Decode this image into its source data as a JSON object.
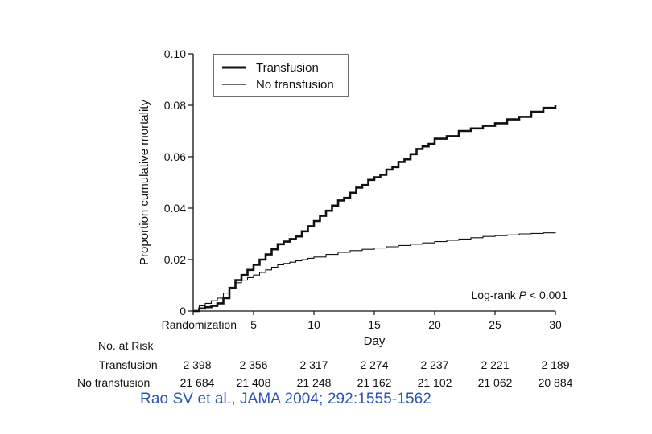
{
  "chart_data": {
    "type": "line",
    "ylabel": "Proportion cumulative mortality",
    "xlabel": "Day",
    "ylim": [
      0,
      0.1
    ],
    "xlim": [
      0,
      30
    ],
    "y_ticks": [
      "0",
      "0.02",
      "0.04",
      "0.06",
      "0.08",
      "0.10"
    ],
    "y_tick_values": [
      0,
      0.02,
      0.04,
      0.06,
      0.08,
      0.1
    ],
    "x_ticks": [
      "Randomization",
      "5",
      "10",
      "15",
      "20",
      "25",
      "30"
    ],
    "x_tick_values": [
      0,
      5,
      10,
      15,
      20,
      25,
      30
    ],
    "legend_position": "top-left",
    "annotation_prefix": "Log-rank",
    "annotation_p": "P",
    "annotation_rest": " < 0.001",
    "series": [
      {
        "name": "Transfusion",
        "style": "thick",
        "x": [
          0,
          0.5,
          1,
          1.5,
          2,
          2.5,
          3,
          3.5,
          4,
          4.5,
          5,
          5.5,
          6,
          6.5,
          7,
          7.5,
          8,
          8.5,
          9,
          9.5,
          10,
          10.5,
          11,
          11.5,
          12,
          12.5,
          13,
          13.5,
          14,
          14.5,
          15,
          15.5,
          16,
          16.5,
          17,
          17.5,
          18,
          18.5,
          19,
          19.5,
          20,
          21,
          22,
          23,
          24,
          25,
          26,
          27,
          28,
          29,
          30
        ],
        "values": [
          0,
          0.001,
          0.0015,
          0.002,
          0.003,
          0.005,
          0.009,
          0.012,
          0.014,
          0.016,
          0.018,
          0.02,
          0.022,
          0.024,
          0.026,
          0.027,
          0.028,
          0.029,
          0.031,
          0.033,
          0.035,
          0.037,
          0.039,
          0.041,
          0.043,
          0.044,
          0.046,
          0.048,
          0.049,
          0.051,
          0.052,
          0.053,
          0.055,
          0.056,
          0.058,
          0.059,
          0.061,
          0.063,
          0.064,
          0.065,
          0.067,
          0.068,
          0.07,
          0.071,
          0.072,
          0.073,
          0.0745,
          0.0755,
          0.0775,
          0.079,
          0.08
        ]
      },
      {
        "name": "No transfusion",
        "style": "thin",
        "x": [
          0,
          0.5,
          1,
          1.5,
          2,
          2.5,
          3,
          3.5,
          4,
          4.5,
          5,
          5.5,
          6,
          6.5,
          7,
          7.5,
          8,
          8.5,
          9,
          9.5,
          10,
          11,
          12,
          13,
          14,
          15,
          16,
          17,
          18,
          19,
          20,
          21,
          22,
          23,
          24,
          25,
          26,
          27,
          28,
          29,
          30
        ],
        "values": [
          0,
          0.002,
          0.003,
          0.004,
          0.005,
          0.007,
          0.009,
          0.011,
          0.012,
          0.013,
          0.014,
          0.015,
          0.016,
          0.017,
          0.018,
          0.0185,
          0.019,
          0.0195,
          0.02,
          0.0205,
          0.021,
          0.022,
          0.0228,
          0.0235,
          0.024,
          0.0245,
          0.025,
          0.0255,
          0.026,
          0.0265,
          0.027,
          0.0275,
          0.028,
          0.0285,
          0.029,
          0.0293,
          0.0296,
          0.03,
          0.0302,
          0.0304,
          0.0306
        ]
      }
    ],
    "risk_table": {
      "title": "No. at Risk",
      "rows": [
        {
          "label": "Transfusion",
          "values": [
            "2 398",
            "2 356",
            "2 317",
            "2 274",
            "2 237",
            "2 221",
            "2 189"
          ]
        },
        {
          "label": "No transfusion",
          "values": [
            "21 684",
            "21 408",
            "21 248",
            "21 162",
            "21 102",
            "21 062",
            "20 884"
          ]
        }
      ]
    }
  },
  "citation": "Rao SV et al., JAMA 2004; 292:1555-1562",
  "colors": {
    "lines": "#111111",
    "citation": "#2d55b8"
  }
}
